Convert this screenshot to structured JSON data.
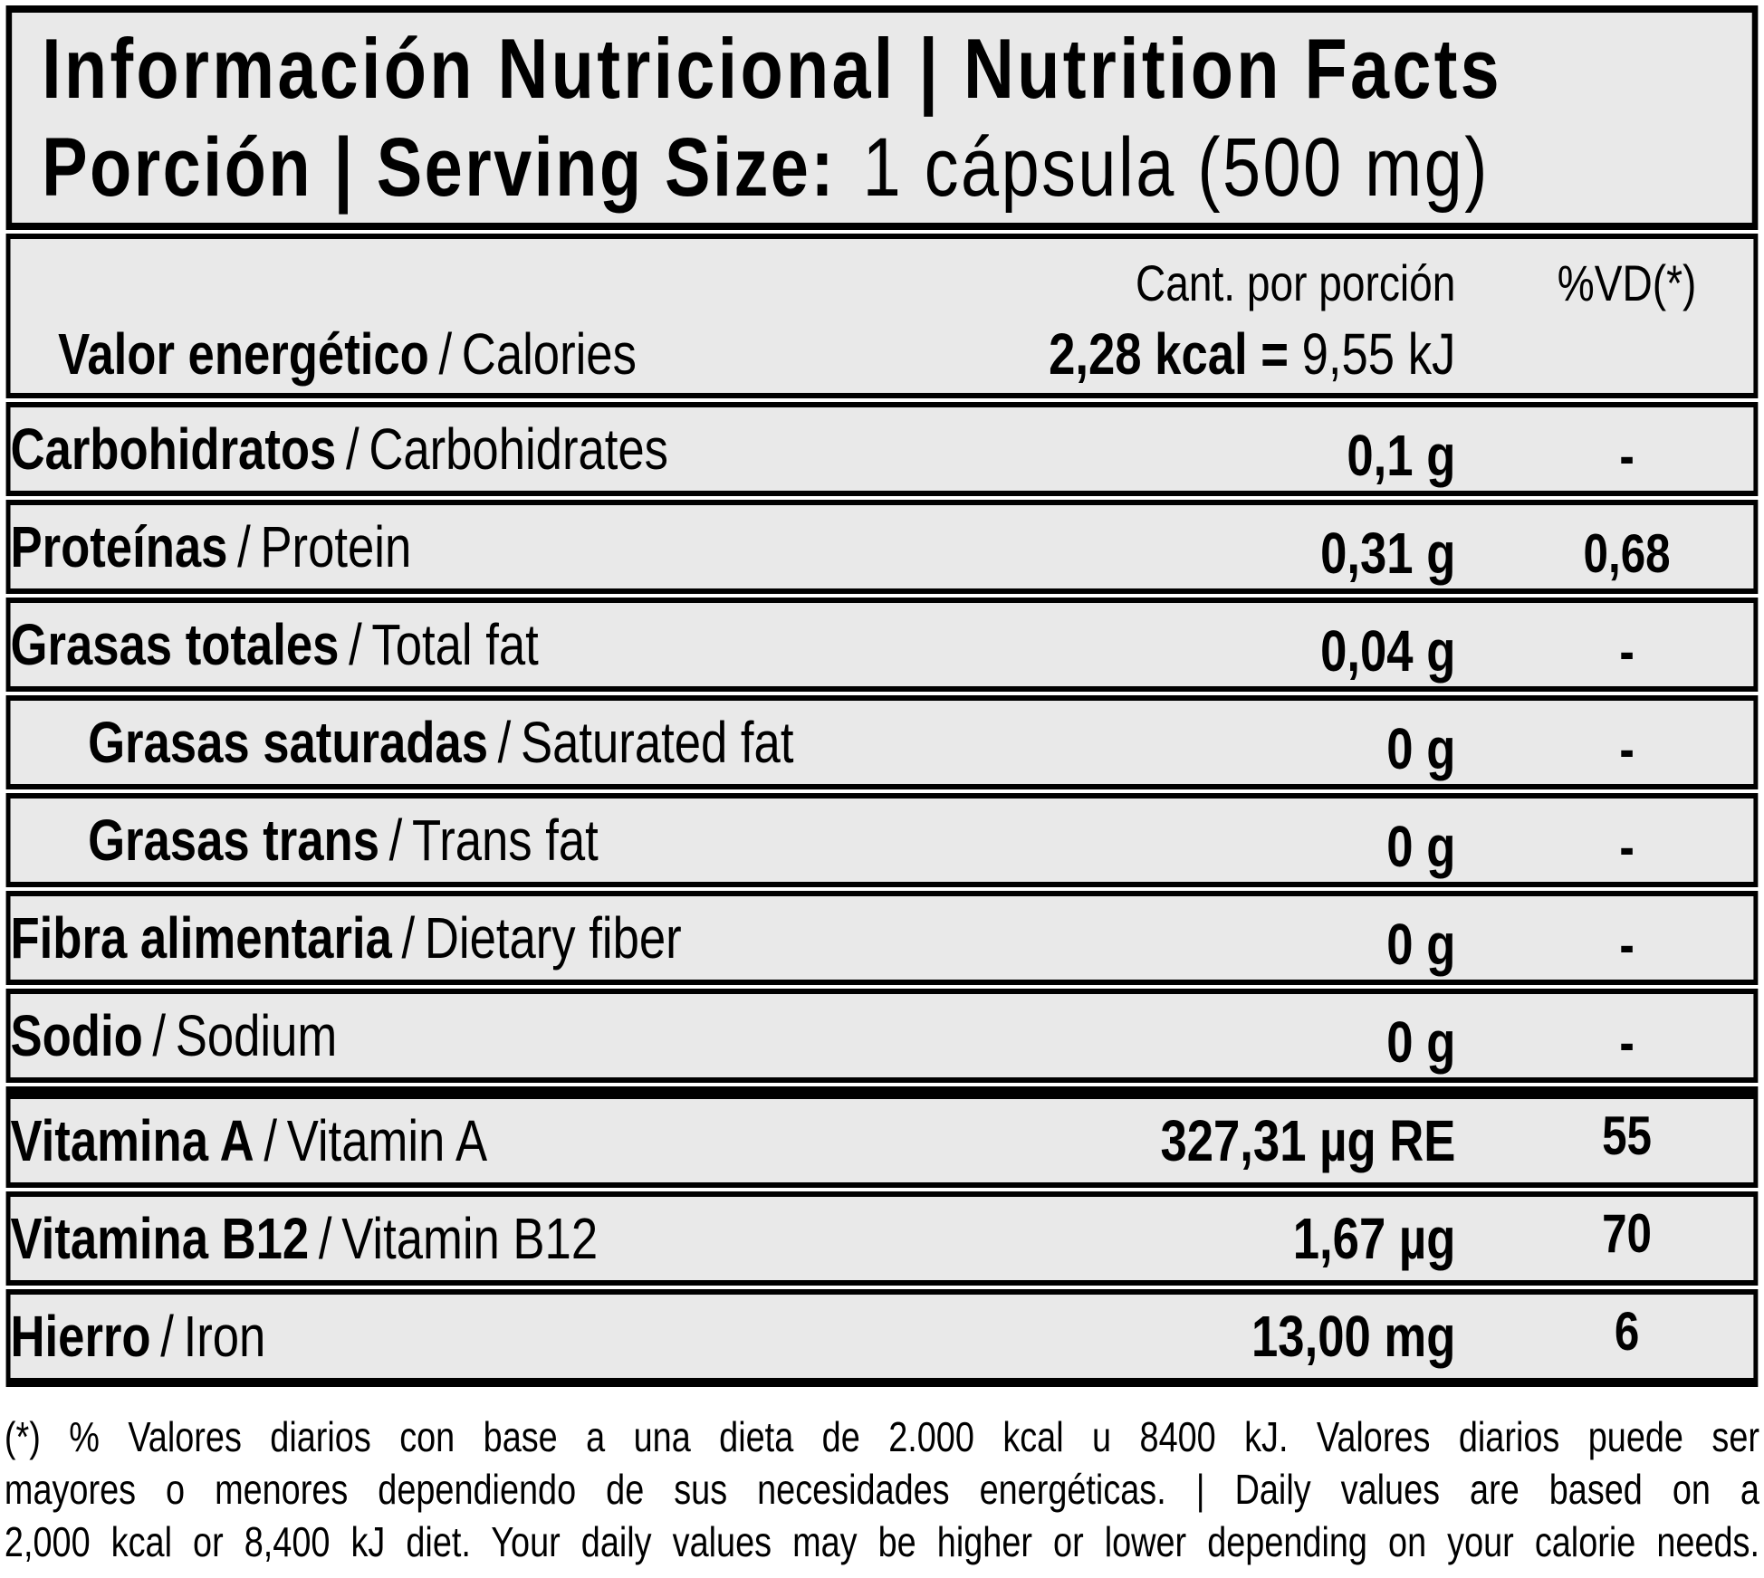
{
  "header": {
    "title": "Información Nutricional | Nutrition Facts",
    "serving_label": "Porción | Serving Size:",
    "serving_value": "1 cápsula (500 mg)"
  },
  "columns": {
    "amount_header": "Cant. por porción",
    "dv_header": "%VD(*)"
  },
  "label_separator": "/",
  "energy_row": {
    "label_es": "Valor energético",
    "label_en": "Calories",
    "value_bold": "2,28 kcal =",
    "value_regular": "9,55 kJ"
  },
  "rows": [
    {
      "label_es": "Carbohidratos",
      "label_en": "Carbohidrates",
      "amount": "0,1 g",
      "dv": "-",
      "indent": false,
      "section_start": false,
      "last": false
    },
    {
      "label_es": "Proteínas",
      "label_en": "Protein",
      "amount": "0,31 g",
      "dv": "0,68",
      "indent": false,
      "section_start": false,
      "last": false
    },
    {
      "label_es": "Grasas totales",
      "label_en": "Total fat",
      "amount": "0,04 g",
      "dv": "-",
      "indent": false,
      "section_start": false,
      "last": false
    },
    {
      "label_es": "Grasas saturadas",
      "label_en": "Saturated fat",
      "amount": "0 g",
      "dv": "-",
      "indent": true,
      "section_start": false,
      "last": false
    },
    {
      "label_es": "Grasas trans",
      "label_en": "Trans fat",
      "amount": "0 g",
      "dv": "-",
      "indent": true,
      "section_start": false,
      "last": false
    },
    {
      "label_es": "Fibra alimentaria",
      "label_en": "Dietary fiber",
      "amount": "0 g",
      "dv": "-",
      "indent": false,
      "section_start": false,
      "last": false
    },
    {
      "label_es": "Sodio",
      "label_en": "Sodium",
      "amount": "0 g",
      "dv": "-",
      "indent": false,
      "section_start": false,
      "last": false
    },
    {
      "label_es": "Vitamina A",
      "label_en": "Vitamin A",
      "amount": "327,31 µg RE",
      "dv": "55",
      "indent": false,
      "section_start": true,
      "last": false
    },
    {
      "label_es": "Vitamina B12",
      "label_en": "Vitamin B12",
      "amount": "1,67 µg",
      "dv": "70",
      "indent": false,
      "section_start": false,
      "last": false
    },
    {
      "label_es": "Hierro",
      "label_en": "Iron",
      "amount": "13,00 mg",
      "dv": "6",
      "indent": false,
      "section_start": false,
      "last": true
    }
  ],
  "footnote_lines": [
    "(*) % Valores diarios con base a una dieta de 2.000 kcal u 8400 kJ. Valores diarios puede ser",
    "mayores o menores dependiendo de sus necesidades energéticas. | Daily values are based on a",
    "2,000 kcal or 8,400 kJ diet. Your daily values may be higher or lower depending on your calorie needs."
  ],
  "colors": {
    "row_background": "#e9e9e9",
    "border": "#000000",
    "page_background": "#ffffff"
  }
}
